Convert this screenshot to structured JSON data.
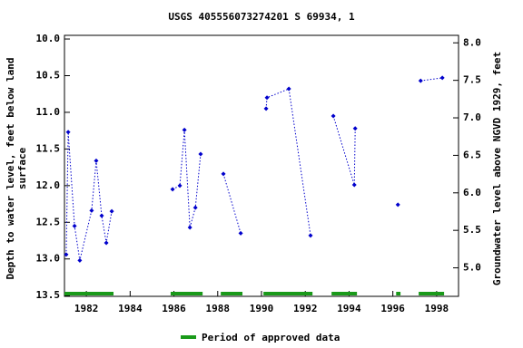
{
  "chart_data": {
    "type": "line",
    "title": "USGS 405556073274201 S 69934, 1",
    "ylabel": [
      "Depth to water level, feet below land",
      "surface"
    ],
    "y2label": "Groundwater level above NGVD 1929, feet",
    "xlim": [
      1981,
      1999
    ],
    "xticks": [
      1982,
      1984,
      1986,
      1988,
      1990,
      1992,
      1994,
      1996,
      1998
    ],
    "ylim": [
      9.95,
      13.51
    ],
    "yticks": [
      {
        "value": 10,
        "label": "10.0"
      },
      {
        "value": 10.5,
        "label": "10.5"
      },
      {
        "value": 11,
        "label": "11.0"
      },
      {
        "value": 11.5,
        "label": "11.5"
      },
      {
        "value": 12,
        "label": "12.0"
      },
      {
        "value": 12.5,
        "label": "12.5"
      },
      {
        "value": 13,
        "label": "13.0"
      },
      {
        "value": 13.5,
        "label": "13.5"
      }
    ],
    "y2lim": [
      8.1,
      4.62
    ],
    "y2ticks": [
      {
        "value": 8,
        "label": "8.0"
      },
      {
        "value": 7.5,
        "label": "7.5"
      },
      {
        "value": 7,
        "label": "7.0"
      },
      {
        "value": 6.5,
        "label": "6.5"
      },
      {
        "value": 6,
        "label": "6.0"
      },
      {
        "value": 5.5,
        "label": "5.5"
      },
      {
        "value": 5,
        "label": "5.0"
      }
    ],
    "x": [
      1981.08,
      1981.17,
      1981.46,
      1981.7,
      1982.24,
      1982.45,
      1982.7,
      1982.91,
      1983.16,
      null,
      1985.94,
      1986.27,
      1986.48,
      1986.73,
      1986.98,
      1987.22,
      null,
      1988.26,
      1989.05,
      null,
      1990.21,
      1990.25,
      1991.25,
      1992.24,
      null,
      1993.28,
      1994.24,
      1994.28,
      null,
      1996.23,
      null,
      1997.27,
      1998.26
    ],
    "series": [
      {
        "color": "#0000cc",
        "values": [
          12.94,
          11.27,
          12.55,
          13.02,
          12.34,
          11.66,
          12.41,
          12.78,
          12.35,
          null,
          12.05,
          12.0,
          11.24,
          12.57,
          12.3,
          11.57,
          null,
          11.84,
          12.65,
          null,
          10.95,
          10.8,
          10.68,
          12.68,
          null,
          11.05,
          11.99,
          11.22,
          null,
          12.26,
          null,
          10.57,
          10.53
        ]
      }
    ],
    "approved_periods": {
      "name": "Period of approved data",
      "color": "#1a9a1a",
      "spans": [
        [
          1981,
          1983.24
        ],
        [
          1985.85,
          1987.31
        ],
        [
          1988.14,
          1989.13
        ],
        [
          1990.09,
          1992.33
        ],
        [
          1993.2,
          1994.36
        ],
        [
          1996.15,
          1996.35
        ],
        [
          1997.18,
          1998.34
        ]
      ]
    }
  }
}
